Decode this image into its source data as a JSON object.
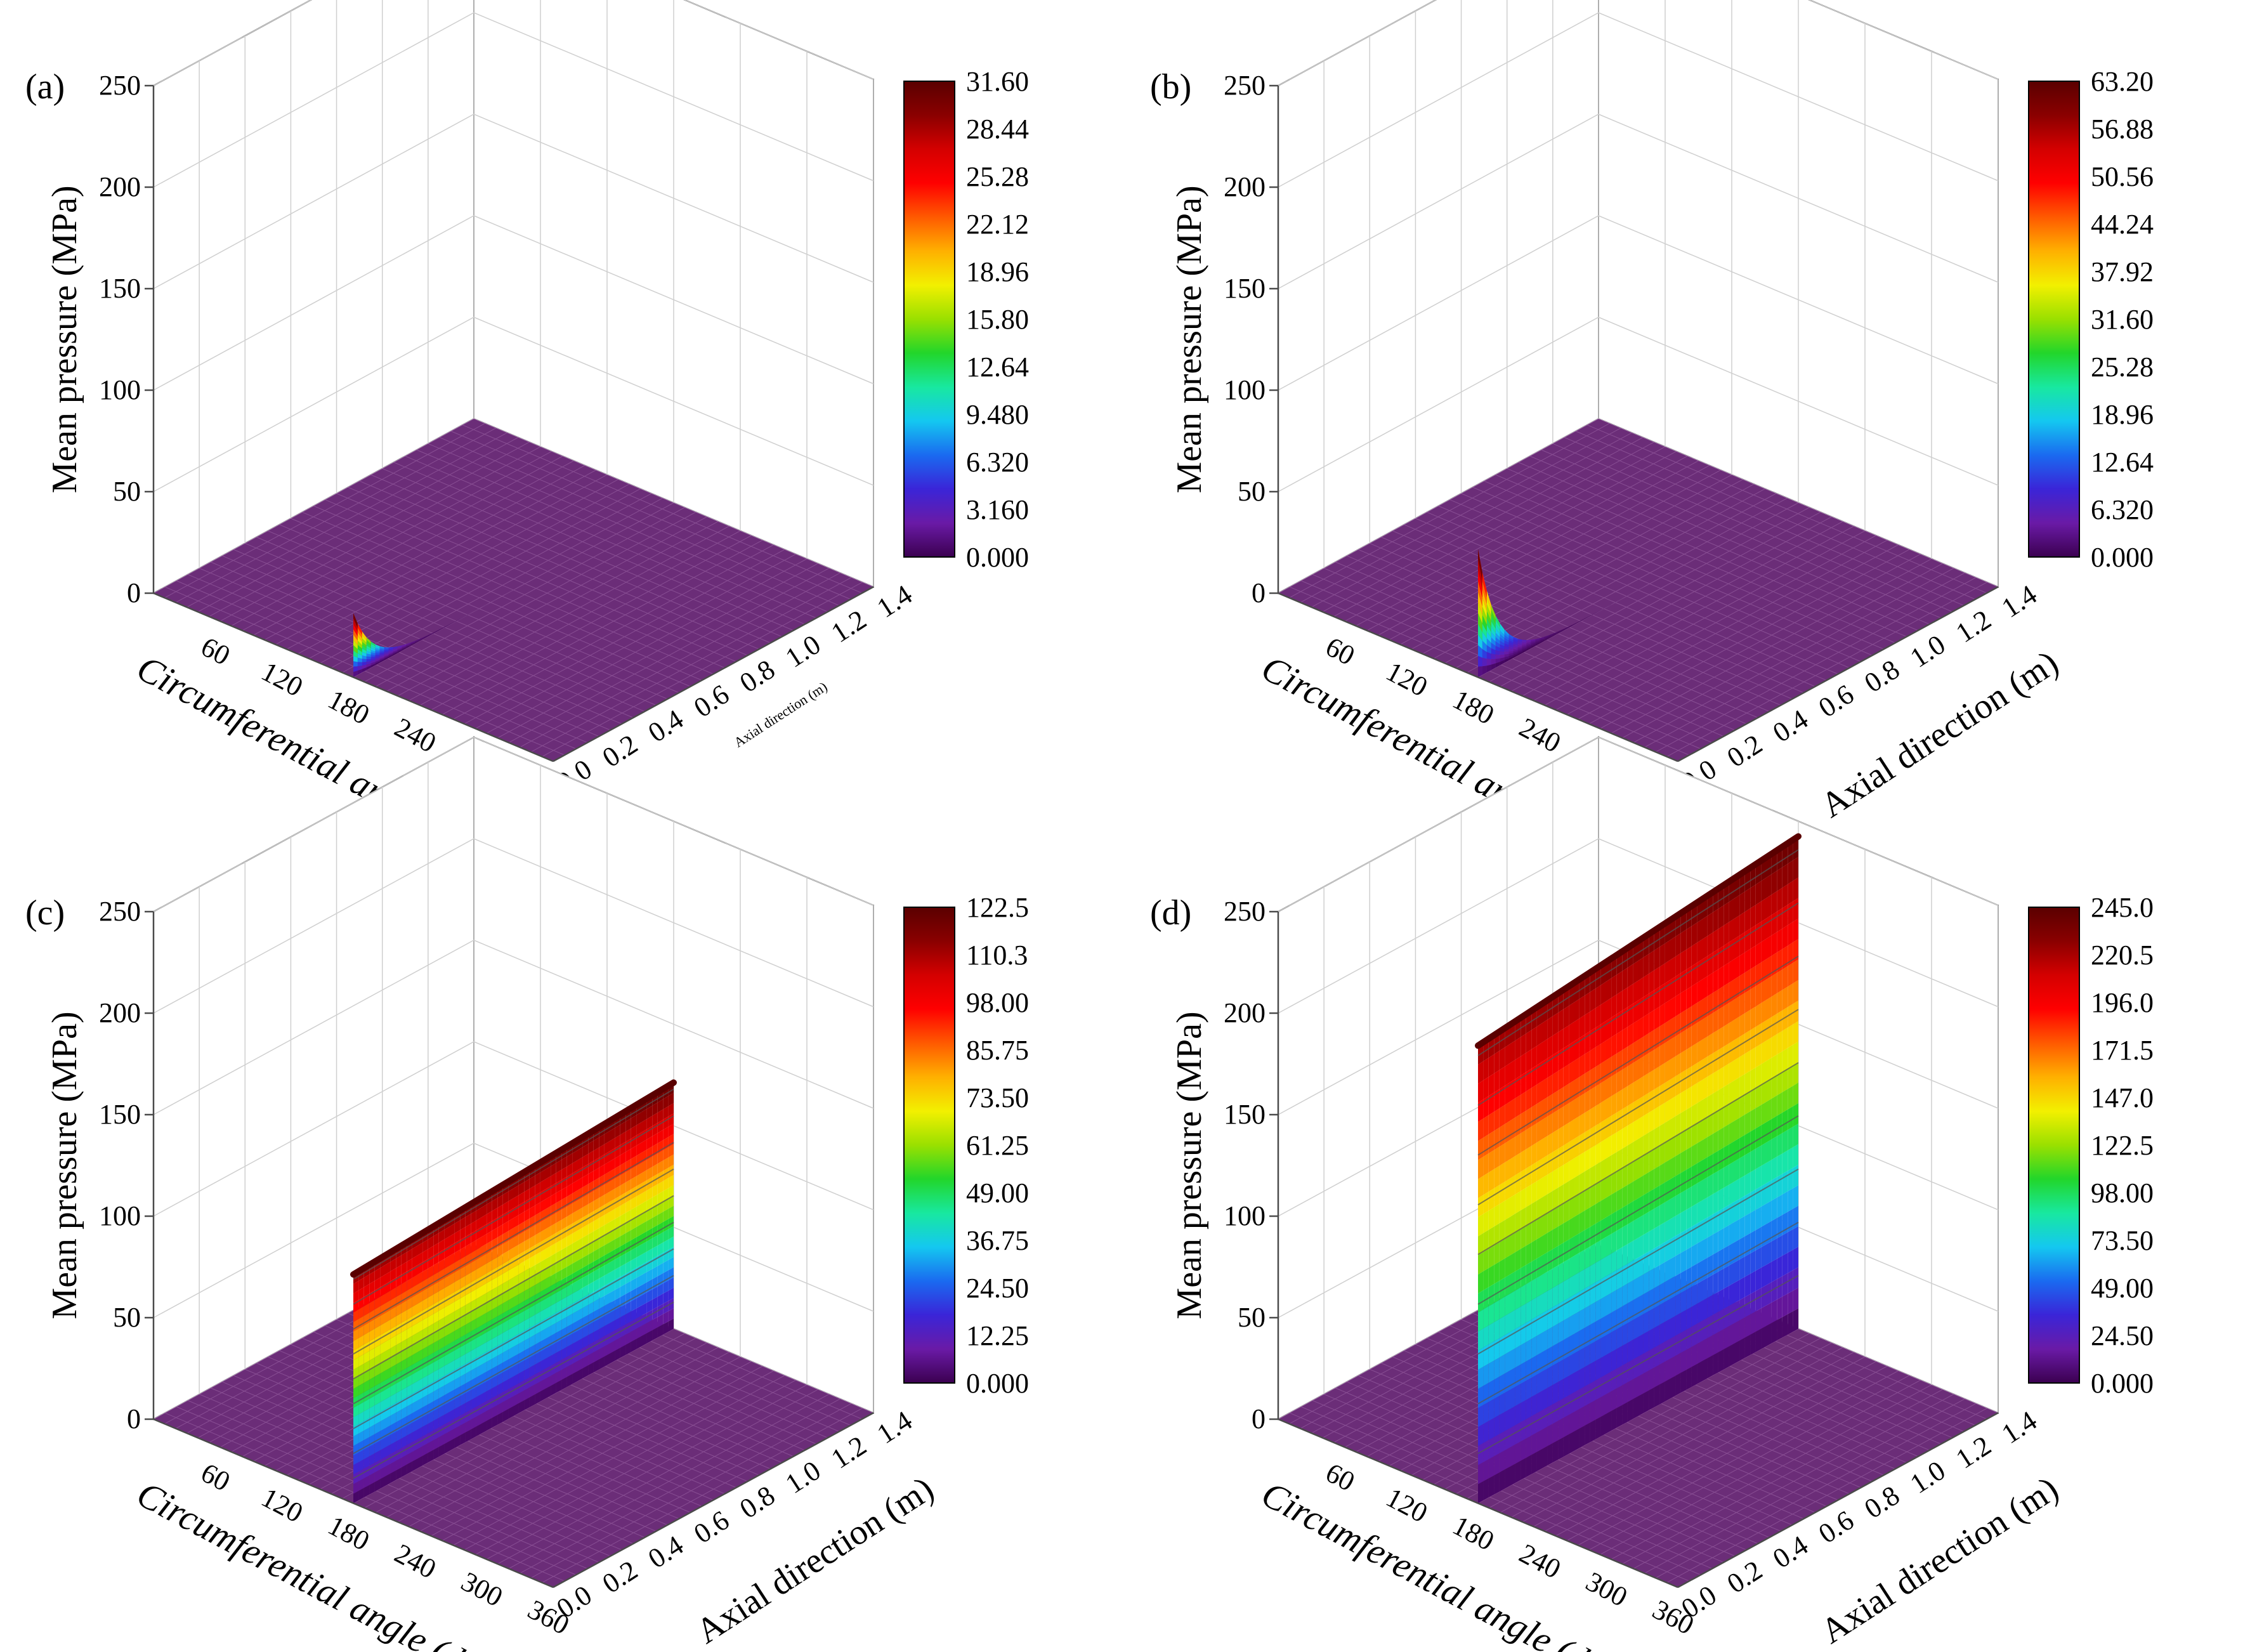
{
  "figure": {
    "z_axis_label": "Mean pressure (MPa)",
    "x_axis_label": "Circumferential angle (deg)",
    "y_axis_label": "Axial direction (m)",
    "z_ticks": [
      "0",
      "50",
      "100",
      "150",
      "200",
      "250"
    ],
    "x_ticks": [
      "60",
      "120",
      "180",
      "240",
      "300",
      "360"
    ],
    "y_ticks": [
      "0.0",
      "0.2",
      "0.4",
      "0.6",
      "0.8",
      "1.0",
      "1.2",
      "1.4"
    ]
  },
  "colors": {
    "colormap": [
      "#3b0050",
      "#6a1aa6",
      "#3a25d8",
      "#1a6af0",
      "#14c8f0",
      "#18e8a0",
      "#22d62a",
      "#9ae000",
      "#f2f000",
      "#ffb000",
      "#ff5a00",
      "#ff0000",
      "#d40000",
      "#8a0000",
      "#5a0000"
    ],
    "floor": "#6b2d78",
    "grid": "#cfcfcf",
    "axis": "#4a4a4a"
  },
  "chart_data": [
    {
      "type": "surface",
      "panel_label": "(a)",
      "zlim": [
        0,
        250
      ],
      "xlim": [
        0,
        360
      ],
      "ylim": [
        0,
        1.4
      ],
      "grid": true,
      "colorbar": {
        "labels": [
          "31.60",
          "28.44",
          "25.28",
          "22.12",
          "18.96",
          "15.80",
          "12.64",
          "9.480",
          "6.320",
          "3.160",
          "0.000"
        ],
        "min": 0,
        "max": 31.6
      },
      "peak_angle_deg": 180,
      "peak_pressure_mpa": 31.6,
      "profile": "spike at y=0 decaying along axial direction"
    },
    {
      "type": "surface",
      "panel_label": "(b)",
      "zlim": [
        0,
        250
      ],
      "xlim": [
        0,
        360
      ],
      "ylim": [
        0,
        1.4
      ],
      "grid": true,
      "colorbar": {
        "labels": [
          "63.20",
          "56.88",
          "50.56",
          "44.24",
          "37.92",
          "31.60",
          "25.28",
          "18.96",
          "12.64",
          "6.320",
          "0.000"
        ],
        "min": 0,
        "max": 63.2
      },
      "peak_angle_deg": 180,
      "peak_pressure_mpa": 63.2,
      "profile": "spike at y=0 decaying along axial direction"
    },
    {
      "type": "surface",
      "panel_label": "(c)",
      "zlim": [
        0,
        250
      ],
      "xlim": [
        0,
        360
      ],
      "ylim": [
        0,
        1.4
      ],
      "grid": true,
      "colorbar": {
        "labels": [
          "122.5",
          "110.3",
          "98.00",
          "85.75",
          "73.50",
          "61.25",
          "49.00",
          "36.75",
          "24.50",
          "12.25",
          "0.000"
        ],
        "min": 0,
        "max": 122.5
      },
      "peak_angle_deg": 180,
      "peak_pressure_mpa": 122.5,
      "profile": "uniform wall along full axial length"
    },
    {
      "type": "surface",
      "panel_label": "(d)",
      "zlim": [
        0,
        250
      ],
      "xlim": [
        0,
        360
      ],
      "ylim": [
        0,
        1.4
      ],
      "grid": true,
      "colorbar": {
        "labels": [
          "245.0",
          "220.5",
          "196.0",
          "171.5",
          "147.0",
          "122.5",
          "98.00",
          "73.50",
          "49.00",
          "24.50",
          "0.000"
        ],
        "min": 0,
        "max": 245.0
      },
      "peak_angle_deg": 180,
      "peak_pressure_mpa": 245.0,
      "profile": "uniform wall along full axial length"
    }
  ]
}
